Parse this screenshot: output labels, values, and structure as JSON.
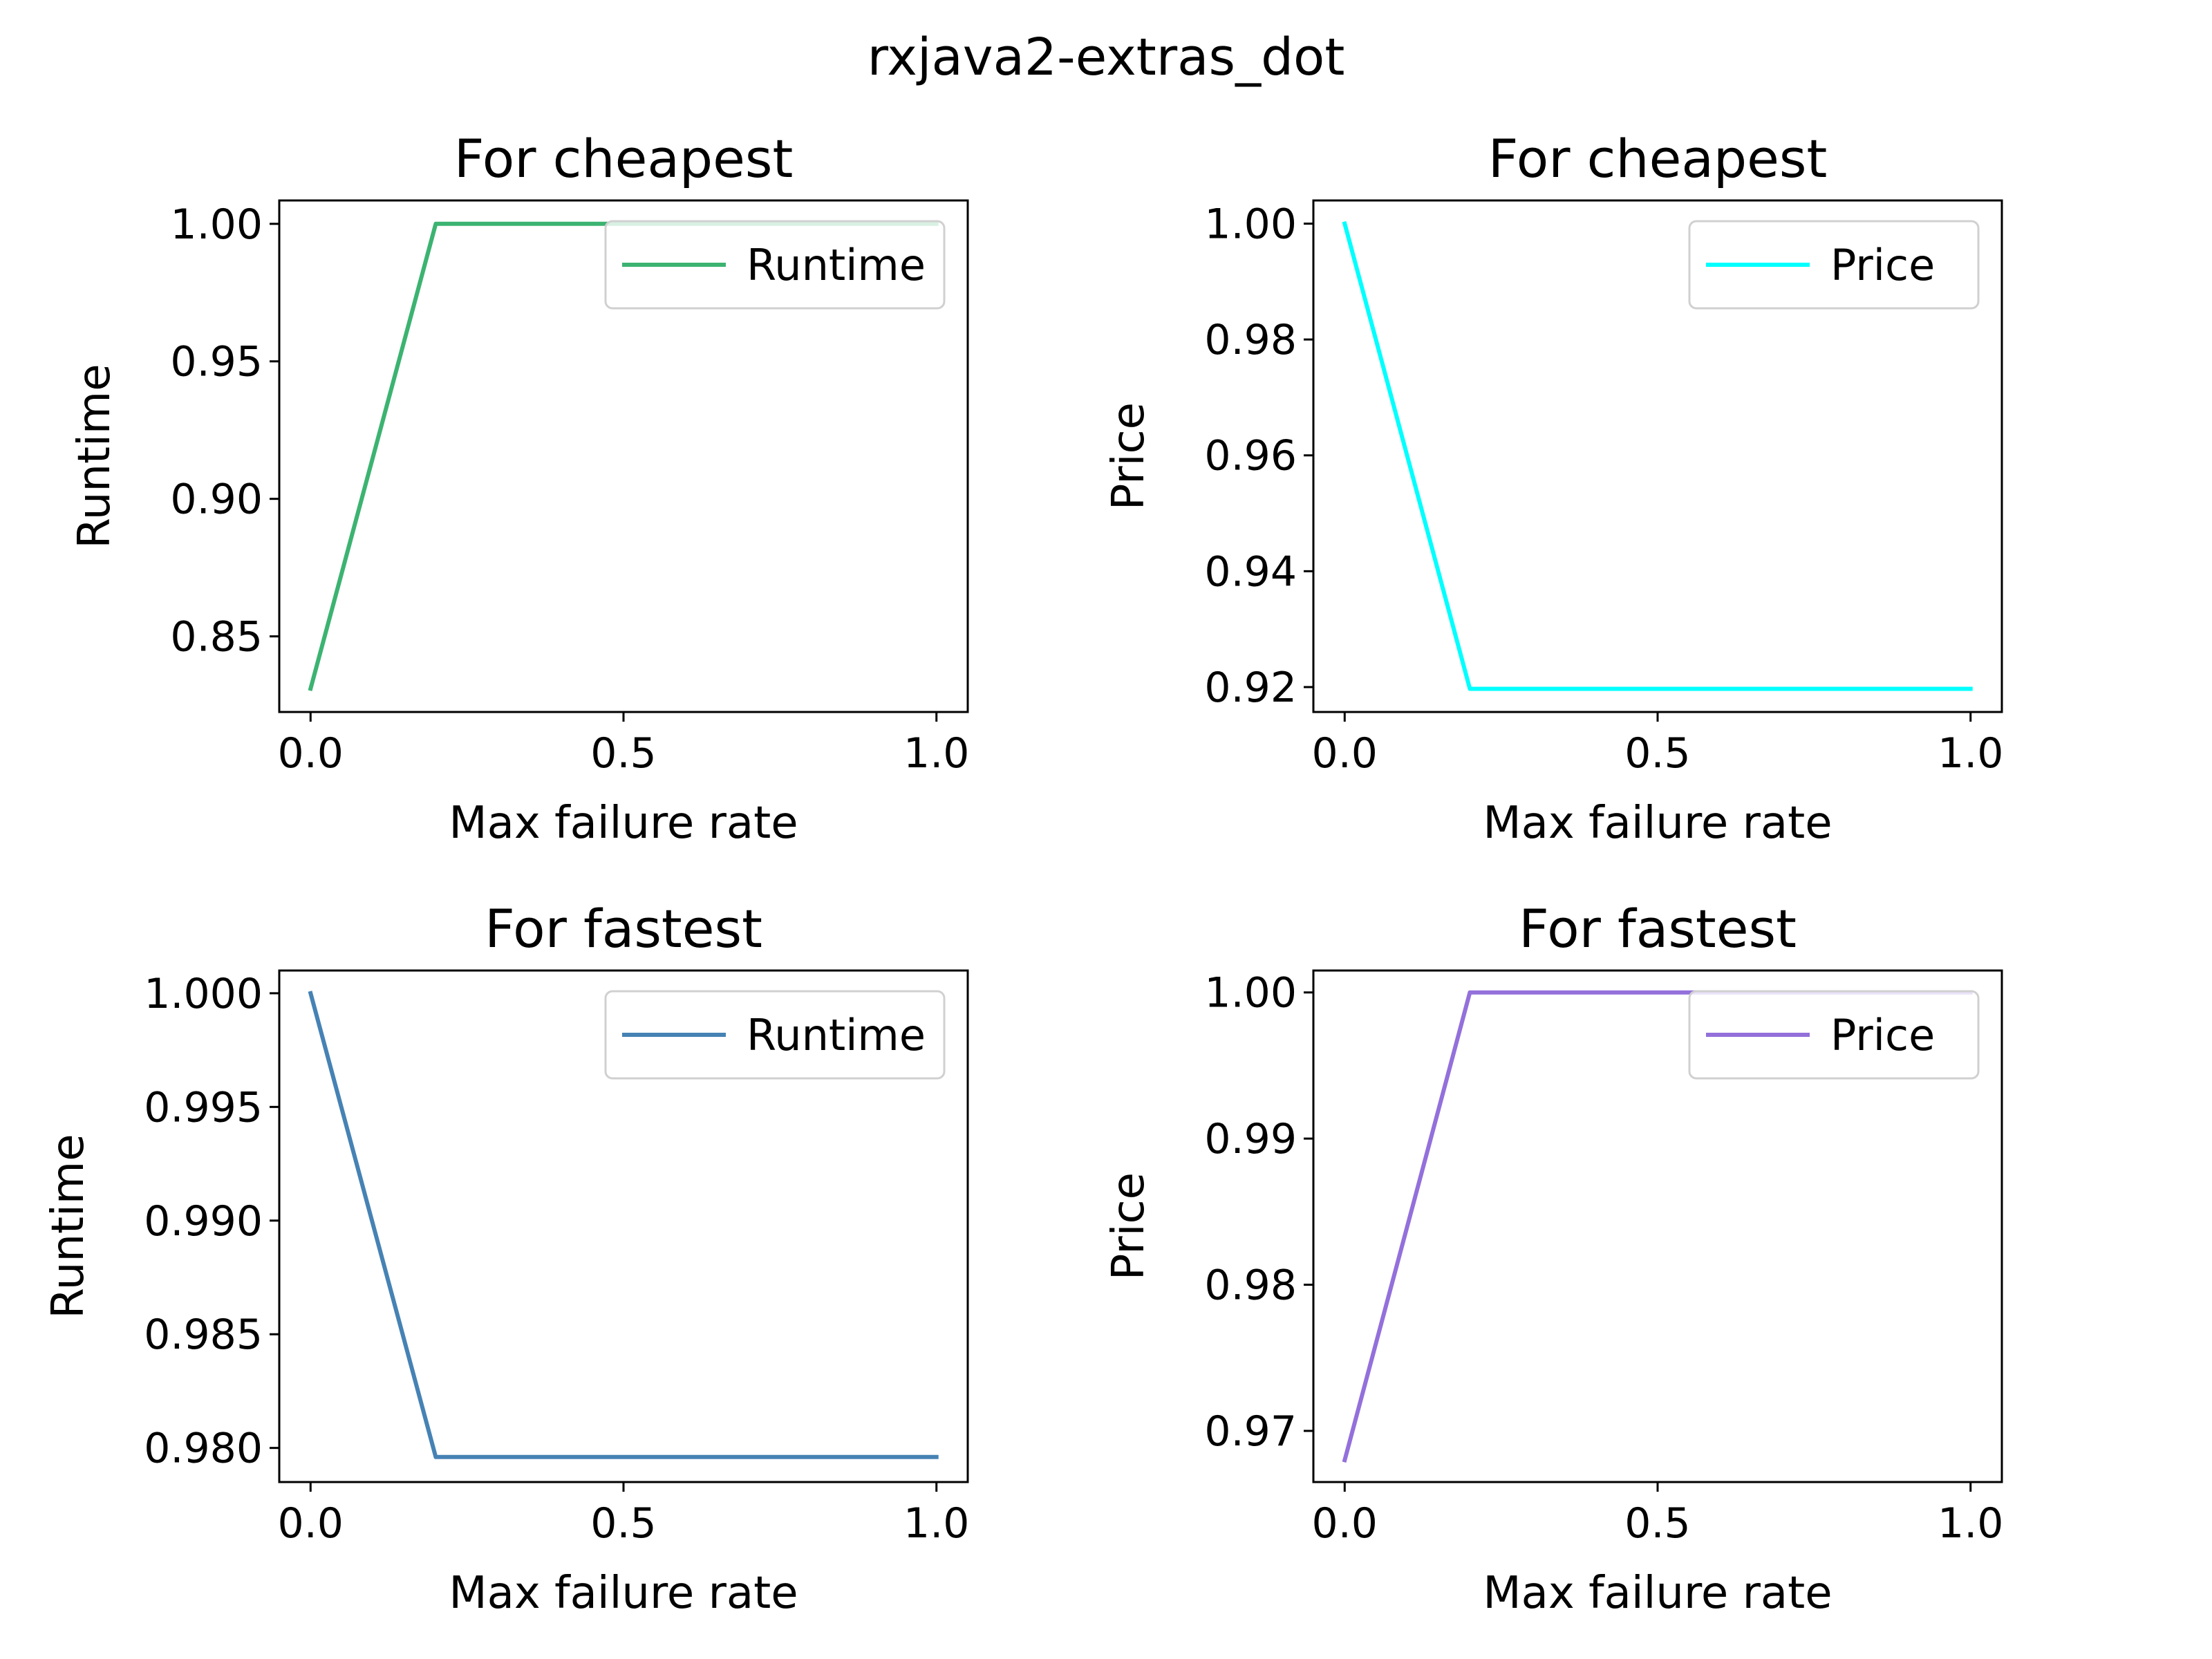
{
  "figure": {
    "suptitle": "rxjava2-extras_dot"
  },
  "chart_data": [
    {
      "type": "line",
      "title": "For cheapest",
      "xlabel": "Max failure rate",
      "ylabel": "Runtime",
      "x": [
        0.0,
        0.2,
        0.4,
        0.6,
        0.8,
        1.0
      ],
      "series": [
        {
          "name": "Runtime",
          "color": "#3cb371",
          "values": [
            0.831,
            1.0,
            1.0,
            1.0,
            1.0,
            1.0
          ]
        }
      ],
      "xlim": [
        -0.05,
        1.05
      ],
      "ylim": [
        0.8225,
        1.0085
      ],
      "xticks": [
        0.0,
        0.5,
        1.0
      ],
      "xtick_labels": [
        "0.0",
        "0.5",
        "1.0"
      ],
      "yticks": [
        0.85,
        0.9,
        0.95,
        1.0
      ],
      "ytick_labels": [
        "0.85",
        "0.90",
        "0.95",
        "1.00"
      ],
      "grid": false,
      "legend": "upper right"
    },
    {
      "type": "line",
      "title": "For cheapest",
      "xlabel": "Max failure rate",
      "ylabel": "Price",
      "x": [
        0.0,
        0.2,
        0.4,
        0.6,
        0.8,
        1.0
      ],
      "series": [
        {
          "name": "Price",
          "color": "#00ffff",
          "values": [
            1.0,
            0.9197,
            0.9197,
            0.9197,
            0.9197,
            0.9197
          ]
        }
      ],
      "xlim": [
        -0.05,
        1.05
      ],
      "ylim": [
        0.9157,
        1.004
      ],
      "xticks": [
        0.0,
        0.5,
        1.0
      ],
      "xtick_labels": [
        "0.0",
        "0.5",
        "1.0"
      ],
      "yticks": [
        0.92,
        0.94,
        0.96,
        0.98,
        1.0
      ],
      "ytick_labels": [
        "0.92",
        "0.94",
        "0.96",
        "0.98",
        "1.00"
      ],
      "grid": false,
      "legend": "upper right"
    },
    {
      "type": "line",
      "title": "For fastest",
      "xlabel": "Max failure rate",
      "ylabel": "Runtime",
      "x": [
        0.0,
        0.2,
        0.4,
        0.6,
        0.8,
        1.0
      ],
      "series": [
        {
          "name": "Runtime",
          "color": "#4682b4",
          "values": [
            1.0,
            0.9796,
            0.9796,
            0.9796,
            0.9796,
            0.9796
          ]
        }
      ],
      "xlim": [
        -0.05,
        1.05
      ],
      "ylim": [
        0.9785,
        1.001
      ],
      "xticks": [
        0.0,
        0.5,
        1.0
      ],
      "xtick_labels": [
        "0.0",
        "0.5",
        "1.0"
      ],
      "yticks": [
        0.98,
        0.985,
        0.99,
        0.995,
        1.0
      ],
      "ytick_labels": [
        "0.980",
        "0.985",
        "0.990",
        "0.995",
        "1.000"
      ],
      "grid": false,
      "legend": "upper right"
    },
    {
      "type": "line",
      "title": "For fastest",
      "xlabel": "Max failure rate",
      "ylabel": "Price",
      "x": [
        0.0,
        0.2,
        0.4,
        0.6,
        0.8,
        1.0
      ],
      "series": [
        {
          "name": "Price",
          "color": "#9370db",
          "values": [
            0.968,
            1.0,
            1.0,
            1.0,
            1.0,
            1.0
          ]
        }
      ],
      "xlim": [
        -0.05,
        1.05
      ],
      "ylim": [
        0.9665,
        1.0015
      ],
      "xticks": [
        0.0,
        0.5,
        1.0
      ],
      "xtick_labels": [
        "0.0",
        "0.5",
        "1.0"
      ],
      "yticks": [
        0.97,
        0.98,
        0.99,
        1.0
      ],
      "ytick_labels": [
        "0.97",
        "0.98",
        "0.99",
        "1.00"
      ],
      "grid": false,
      "legend": "upper right"
    }
  ]
}
